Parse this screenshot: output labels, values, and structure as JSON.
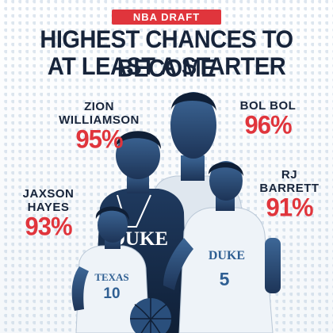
{
  "header": {
    "badge": "NBA DRAFT",
    "title_line1": "HIGHEST CHANCES TO BECOME",
    "title_line2": "AT LEAST A STARTER"
  },
  "players": [
    {
      "name_line1": "ZION",
      "name_line2": "WILLIAMSON",
      "percent": "95%",
      "jersey": "DUKE",
      "number": ""
    },
    {
      "name_line1": "",
      "name_line2": "BOL BOL",
      "percent": "96%",
      "jersey": "",
      "number": ""
    },
    {
      "name_line1": "RJ",
      "name_line2": "BARRETT",
      "percent": "91%",
      "jersey": "DUKE",
      "number": "5"
    },
    {
      "name_line1": "JAXSON",
      "name_line2": "HAYES",
      "percent": "93%",
      "jersey": "TEXAS",
      "number": "10"
    }
  ],
  "colors": {
    "accent_red": "#e0353c",
    "navy": "#17243a",
    "duotone_blue": "#2f5f93"
  }
}
